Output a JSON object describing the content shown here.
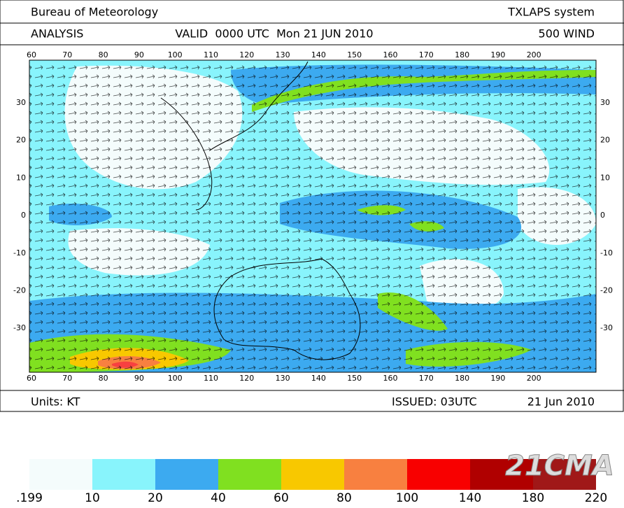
{
  "header": {
    "left": "Bureau of Meteorology",
    "right": "TXLAPS system"
  },
  "subheader": {
    "left": "ANALYSIS",
    "center": "VALID  0000 UTC  Mon 21 JUN 2010",
    "right": "500 WIND"
  },
  "map": {
    "lon_labels": [
      "60",
      "70",
      "80",
      "90",
      "100",
      "110",
      "120",
      "130",
      "140",
      "150",
      "160",
      "170",
      "180",
      "190",
      "200"
    ],
    "lat_labels": [
      "30",
      "20",
      "10",
      "0",
      "-10",
      "-20",
      "-30"
    ]
  },
  "footer": {
    "units": "Units: KT",
    "issued": "ISSUED: 03UTC",
    "date": "21 Jun 2010"
  },
  "legend": {
    "colors": [
      "#f4fcfc",
      "#88f4fc",
      "#3caaf0",
      "#80e020",
      "#f8c800",
      "#f88040",
      "#f80000",
      "#b00000",
      "#a01818"
    ],
    "labels": [
      ".199",
      "10",
      "20",
      "40",
      "60",
      "80",
      "100",
      "140",
      "180",
      "220"
    ]
  },
  "watermark": "21CMA"
}
